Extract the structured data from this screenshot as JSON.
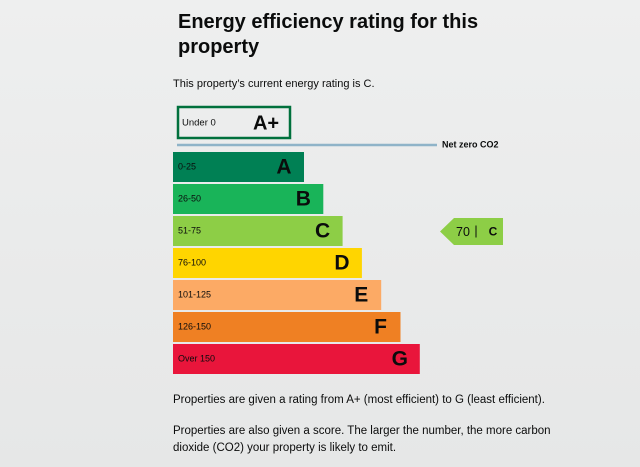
{
  "title": "Energy efficiency rating for this property",
  "summary": "This property’s current energy rating is C.",
  "top_band": {
    "range": "Under 0",
    "letter": "A+",
    "color": "#00703c"
  },
  "net_zero_label": "Net zero CO2",
  "bands": [
    {
      "range": "0-25",
      "letter": "A",
      "color": "#008054"
    },
    {
      "range": "26-50",
      "letter": "B",
      "color": "#19b459"
    },
    {
      "range": "51-75",
      "letter": "C",
      "color": "#8dce46"
    },
    {
      "range": "76-100",
      "letter": "D",
      "color": "#ffd500"
    },
    {
      "range": "101-125",
      "letter": "E",
      "color": "#fcaa65"
    },
    {
      "range": "126-150",
      "letter": "F",
      "color": "#ef8023"
    },
    {
      "range": "Over 150",
      "letter": "G",
      "color": "#e9153b"
    }
  ],
  "current": {
    "score": "70",
    "rating": "C"
  },
  "paragraphs": [
    "Properties are given a rating from A+ (most efficient) to G (least efficient).",
    "Properties are also given a score. The larger the number, the more carbon dioxide (CO2) your property is likely to emit."
  ]
}
